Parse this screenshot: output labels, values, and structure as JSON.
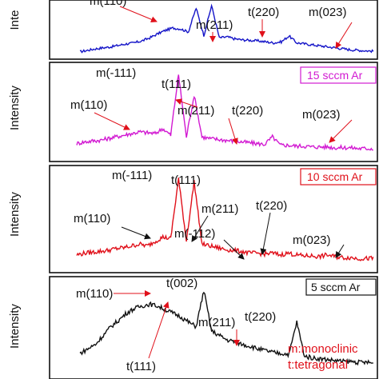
{
  "chart_data": [
    {
      "type": "line",
      "title": "",
      "ylabel": "Inte",
      "series": [
        {
          "name": "",
          "color": "#1515c8",
          "values": [
            0.02,
            0.05,
            0.08,
            0.1,
            0.12,
            0.15,
            0.18,
            0.2,
            0.24,
            0.3,
            0.38,
            0.45,
            0.5,
            0.48,
            0.42,
            0.9,
            0.35,
            0.95,
            0.3,
            0.32,
            0.28,
            0.26,
            0.25,
            0.24,
            0.22,
            0.2,
            0.22,
            0.34,
            0.2,
            0.18,
            0.16,
            0.14,
            0.12,
            0.1,
            0.08,
            0.06,
            0.05,
            0.04,
            0.03
          ]
        }
      ],
      "annotations": [
        "m(110)",
        "m(211)",
        "t(220)",
        "m(023)"
      ],
      "box": "",
      "box_color": ""
    },
    {
      "type": "line",
      "title": "",
      "ylabel": "Intensity",
      "series": [
        {
          "name": "",
          "color": "#d21ad2",
          "values": [
            0.12,
            0.14,
            0.15,
            0.16,
            0.18,
            0.2,
            0.22,
            0.24,
            0.26,
            0.25,
            0.24,
            0.3,
            0.22,
            0.95,
            0.2,
            0.7,
            0.2,
            0.18,
            0.17,
            0.16,
            0.15,
            0.14,
            0.13,
            0.12,
            0.11,
            0.2,
            0.1,
            0.1,
            0.09,
            0.09,
            0.08,
            0.08,
            0.08,
            0.07,
            0.07,
            0.07,
            0.06,
            0.06,
            0.06
          ]
        }
      ],
      "annotations": [
        "m(-111)",
        "t(111)",
        "m(110)",
        "m(211)",
        "t(220)",
        "m(023)"
      ],
      "box": "15 sccm Ar",
      "box_color": "#d21ad2"
    },
    {
      "type": "line",
      "title": "",
      "ylabel": "Intensity",
      "series": [
        {
          "name": "",
          "color": "#e0101a",
          "values": [
            0.1,
            0.12,
            0.13,
            0.14,
            0.15,
            0.17,
            0.18,
            0.2,
            0.22,
            0.2,
            0.25,
            0.3,
            0.28,
            0.95,
            0.26,
            0.92,
            0.22,
            0.2,
            0.18,
            0.16,
            0.15,
            0.14,
            0.12,
            0.12,
            0.11,
            0.12,
            0.1,
            0.12,
            0.1,
            0.09,
            0.09,
            0.08,
            0.1,
            0.08,
            0.07,
            0.07,
            0.06,
            0.06,
            0.06
          ]
        }
      ],
      "annotations": [
        "m(-111)",
        "t(111)",
        "m(110)",
        "m(211)",
        "t(220)",
        "m(-112)",
        "m(023)"
      ],
      "box": "10 sccm Ar",
      "box_color": "#e0101a"
    },
    {
      "type": "line",
      "title": "",
      "ylabel": "Intensity",
      "series": [
        {
          "name": "",
          "color": "#111111",
          "values": [
            0.25,
            0.3,
            0.35,
            0.45,
            0.55,
            0.62,
            0.7,
            0.75,
            0.78,
            0.8,
            0.78,
            0.74,
            0.7,
            0.66,
            0.6,
            0.55,
            0.95,
            0.5,
            0.45,
            0.4,
            0.38,
            0.35,
            0.33,
            0.3,
            0.28,
            0.26,
            0.25,
            0.24,
            0.6,
            0.22,
            0.2,
            0.19,
            0.18,
            0.17,
            0.16,
            0.16,
            0.15,
            0.15,
            0.14
          ]
        }
      ],
      "annotations": [
        "m(110)",
        "t(002)",
        "t(111)",
        "m(211)",
        "t(220)"
      ],
      "box": "5 sccm Ar",
      "box_color": "#111111"
    }
  ],
  "legend": {
    "line1": "m:monoclinic",
    "line2": "t:tetragonal",
    "color": "#e0101a"
  }
}
